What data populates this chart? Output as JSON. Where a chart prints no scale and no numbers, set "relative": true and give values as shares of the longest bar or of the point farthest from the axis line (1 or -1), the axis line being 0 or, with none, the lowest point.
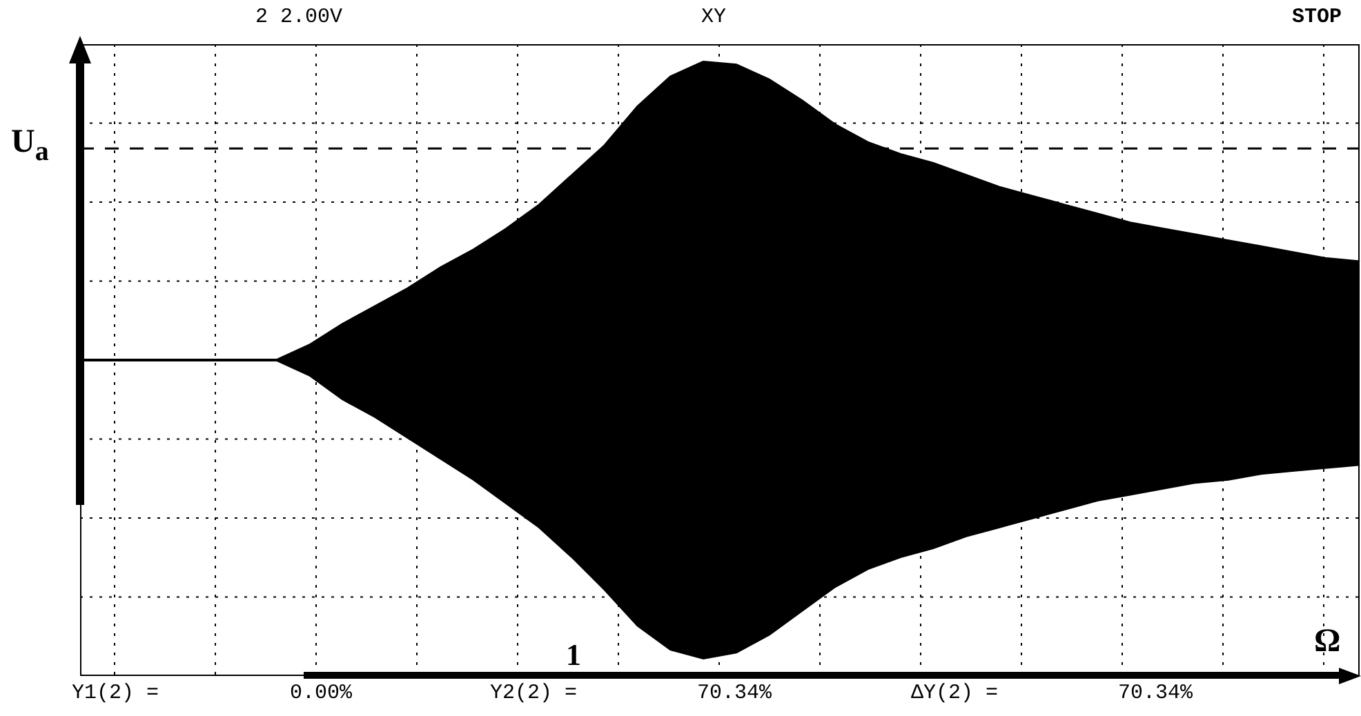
{
  "chart_data": {
    "type": "area",
    "relative": true,
    "xlabel": "Ω",
    "ylabel": "U$_{a}$",
    "categories": [
      null,
      null,
      null,
      null,
      null,
      null,
      null,
      null,
      null,
      null,
      null,
      null,
      null,
      null,
      null,
      null,
      null,
      null,
      null,
      null,
      null,
      null,
      null,
      null,
      null,
      null,
      null,
      null,
      null,
      null,
      null,
      null,
      null,
      null,
      null,
      null,
      null,
      null,
      null,
      null
    ],
    "series": [
      {
        "color": "#000000",
        "values": [
          0,
          0,
          0,
          0,
          0,
          0,
          0,
          0.05,
          0.12,
          0.18,
          0.24,
          0.31,
          0.37,
          0.44,
          0.52,
          0.62,
          0.72,
          0.85,
          0.95,
          1.0,
          0.99,
          0.94,
          0.87,
          0.79,
          0.73,
          0.69,
          0.66,
          0.62,
          0.58,
          0.55,
          0.52,
          0.49,
          0.46,
          0.44,
          0.42,
          0.4,
          0.38,
          0.36,
          0.34,
          0.33
        ]
      },
      {
        "color": "#000000",
        "values": [
          0,
          0,
          0,
          0,
          0,
          0,
          0,
          -0.05,
          -0.13,
          -0.19,
          -0.26,
          -0.33,
          -0.4,
          -0.48,
          -0.56,
          -0.66,
          -0.77,
          -0.89,
          -0.97,
          -1.0,
          -0.98,
          -0.92,
          -0.84,
          -0.76,
          -0.7,
          -0.66,
          -0.63,
          -0.59,
          -0.56,
          -0.53,
          -0.5,
          -0.47,
          -0.45,
          -0.43,
          -0.41,
          -0.4,
          -0.38,
          -0.37,
          -0.36,
          -0.35
        ]
      }
    ],
    "ref_lines": [
      {
        "axis": "y",
        "value": 0,
        "line_style": "dotted",
        "color": "#000000"
      },
      {
        "axis": "y",
        "value": 0.71,
        "line_style": "dashed",
        "color": "#000000"
      }
    ],
    "grid": true,
    "legend": false,
    "annotations": [
      "2 2.00V",
      "XY",
      "STOP",
      "1",
      "Y1(2) =",
      "0.00%",
      "Y2(2) =",
      "70.34%",
      "ΔY(2) =",
      "70.34%"
    ]
  }
}
